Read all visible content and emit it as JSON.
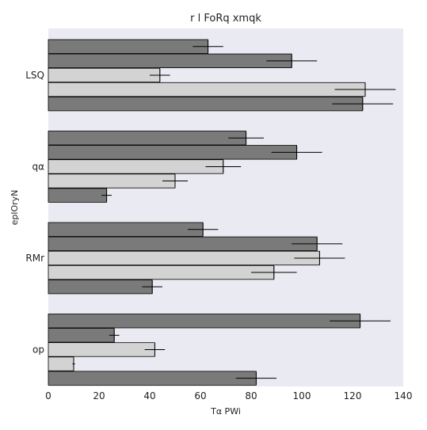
{
  "chart_data": {
    "type": "bar",
    "orientation": "horizontal",
    "title": "r l FoRq xmqk",
    "xlabel": "Tα PWi",
    "ylabel": "eplOryN",
    "xlim": [
      0,
      140
    ],
    "xticks": [
      0,
      20,
      40,
      60,
      80,
      100,
      120,
      140
    ],
    "grid": false,
    "categories": [
      "LSQ",
      "qα",
      "RMr",
      "op"
    ],
    "series": [
      {
        "color": "#7a7a7a",
        "values": [
          63,
          78,
          61,
          123
        ],
        "errors": [
          6,
          7,
          6,
          12
        ]
      },
      {
        "color": "#7a7a7a",
        "values": [
          96,
          98,
          106,
          26
        ],
        "errors": [
          10,
          10,
          10,
          2
        ]
      },
      {
        "color": "#d3d3d3",
        "values": [
          44,
          69,
          107,
          42
        ],
        "errors": [
          4,
          7,
          10,
          4
        ]
      },
      {
        "color": "#d3d3d3",
        "values": [
          125,
          50,
          89,
          10
        ],
        "errors": [
          12,
          5,
          9,
          0.5
        ]
      },
      {
        "color": "#7a7a7a",
        "values": [
          124,
          23,
          41,
          82
        ],
        "errors": [
          12,
          2,
          4,
          8
        ]
      }
    ],
    "plot_background": "#eaeaf2",
    "bar_edge_color": "#000000"
  }
}
